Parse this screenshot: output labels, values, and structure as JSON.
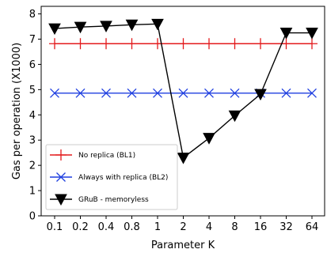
{
  "chart_data": {
    "type": "line",
    "title": "",
    "xlabel": "Parameter K",
    "ylabel": "Gas per operation (X1000)",
    "categories": [
      "0.1",
      "0.2",
      "0.4",
      "0.8",
      "1",
      "2",
      "4",
      "8",
      "16",
      "32",
      "64"
    ],
    "ylim": [
      0,
      8.3
    ],
    "yticks": [
      "0",
      "1",
      "2",
      "3",
      "4",
      "5",
      "6",
      "7",
      "8"
    ],
    "grid": false,
    "legend_position": "lower-left",
    "series": [
      {
        "name": "No replica (BL1)",
        "color": "#e31a1c",
        "marker": "plus",
        "values": [
          6.82,
          6.82,
          6.82,
          6.82,
          6.82,
          6.82,
          6.82,
          6.82,
          6.82,
          6.82,
          6.82
        ]
      },
      {
        "name": "Always with replica (BL2)",
        "color": "#1f3fe0",
        "marker": "x",
        "values": [
          4.86,
          4.86,
          4.86,
          4.86,
          4.86,
          4.86,
          4.86,
          4.86,
          4.86,
          4.86,
          4.86
        ]
      },
      {
        "name": "GRuB - memoryless",
        "color": "#000000",
        "marker": "triangle-down",
        "values": [
          7.42,
          7.48,
          7.52,
          7.57,
          7.6,
          2.3,
          3.08,
          3.97,
          4.82,
          7.25,
          7.25
        ]
      }
    ]
  }
}
